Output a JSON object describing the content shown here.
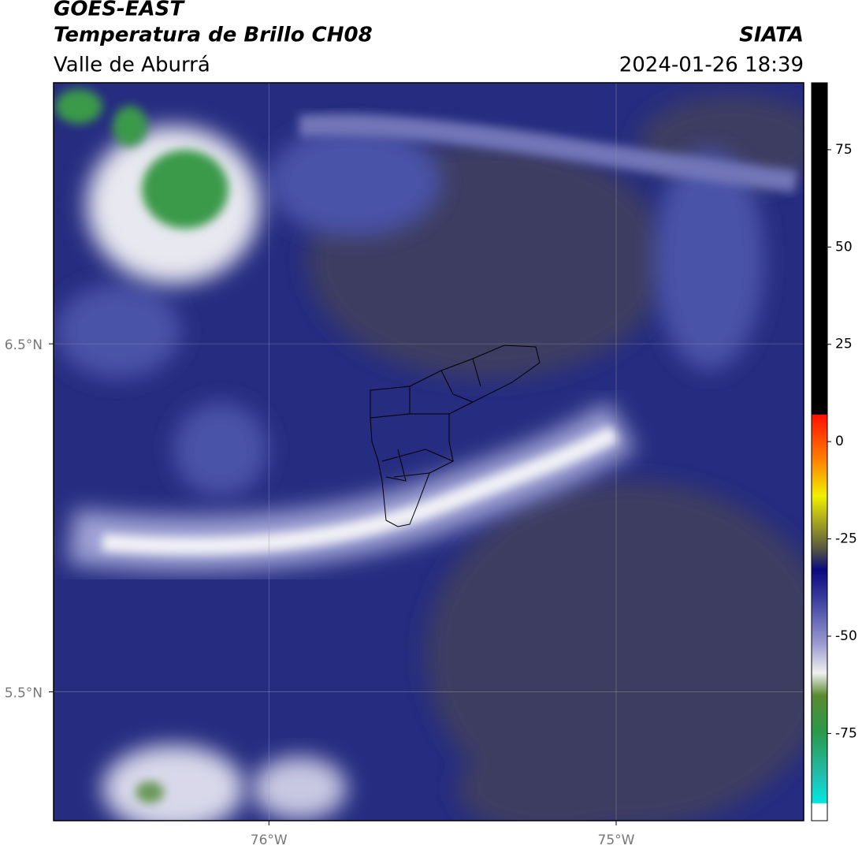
{
  "header": {
    "title": "GOES-EAST",
    "subtitle": "Temperatura de Brillo CH08",
    "region": "Valle de Aburrá",
    "source": "SIATA",
    "timestamp": "2024-01-26 18:39"
  },
  "map": {
    "xlim": [
      -76.62,
      -74.46
    ],
    "ylim": [
      5.13,
      7.25
    ],
    "xticks": [
      {
        "value": -76,
        "label": "76°W"
      },
      {
        "value": -75,
        "label": "75°W"
      }
    ],
    "yticks": [
      {
        "value": 6.5,
        "label": "6.5°N"
      },
      {
        "value": 5.5,
        "label": "5.5°N"
      }
    ],
    "grid": true
  },
  "colorbar": {
    "clim": [
      -97.4,
      92.2
    ],
    "ticks": [
      75,
      50,
      25,
      0,
      -25,
      -50,
      -75
    ]
  }
}
